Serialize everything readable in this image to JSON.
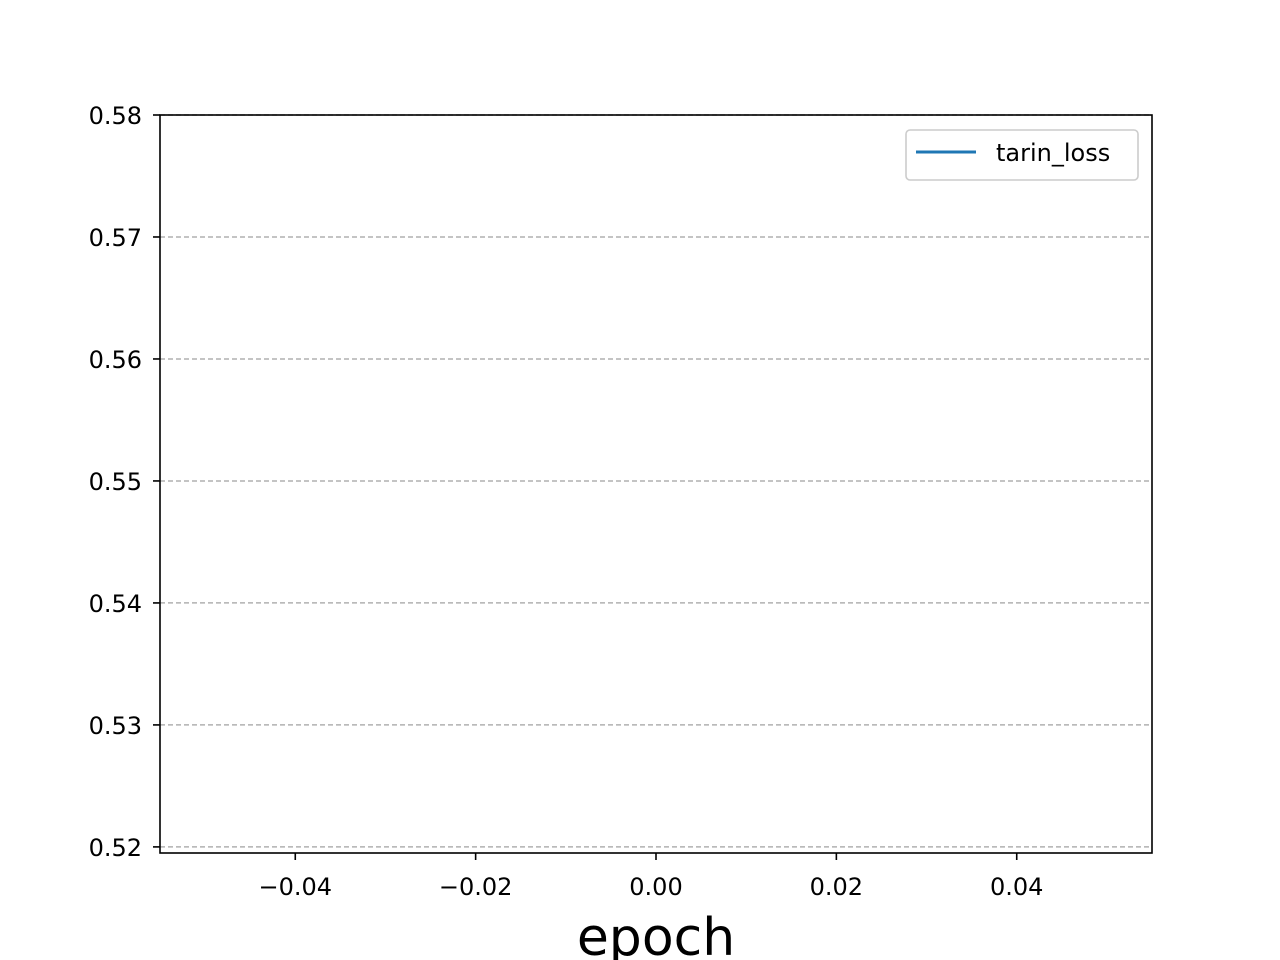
{
  "chart_data": {
    "type": "line",
    "title": "",
    "xlabel": "epoch",
    "ylabel": "",
    "xlim": [
      -0.055,
      0.055
    ],
    "ylim": [
      0.5195,
      0.58
    ],
    "x_ticks": [
      -0.04,
      -0.02,
      0.0,
      0.02,
      0.04
    ],
    "x_tick_labels": [
      "−0.04",
      "−0.02",
      "0.00",
      "0.02",
      "0.04"
    ],
    "y_ticks": [
      0.52,
      0.53,
      0.54,
      0.55,
      0.56,
      0.57,
      0.58
    ],
    "y_tick_labels": [
      "0.52",
      "0.53",
      "0.54",
      "0.55",
      "0.56",
      "0.57",
      "0.58"
    ],
    "grid": "y-dashed",
    "legend_position": "top-right",
    "series": [
      {
        "name": "tarin_loss",
        "color": "#1f77b4",
        "x": [],
        "y": []
      }
    ]
  },
  "colors": {
    "grid": "#b0b0b0",
    "axes": "#000000",
    "series": "#1f77b4"
  }
}
